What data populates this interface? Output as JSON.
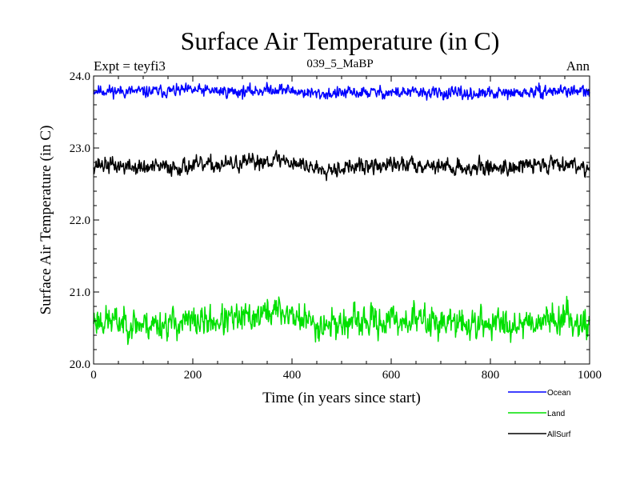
{
  "chart_data": {
    "type": "line",
    "title": "Surface Air Temperature (in C)",
    "subtitle": "039_5_MaBP",
    "left_annotation": "Expt = teyfi3",
    "right_annotation": "Ann",
    "xlabel": "Time (in years since start)",
    "ylabel": "Surface Air Temperature (in C)",
    "xlim": [
      0,
      1000
    ],
    "ylim": [
      20.0,
      24.0
    ],
    "xticks": [
      0,
      200,
      400,
      600,
      800,
      1000
    ],
    "xtick_labels": [
      "0",
      "200",
      "400",
      "600",
      "800",
      "1000"
    ],
    "yticks": [
      20.0,
      21.0,
      22.0,
      23.0,
      24.0
    ],
    "ytick_labels": [
      "20.0",
      "21.0",
      "22.0",
      "23.0",
      "24.0"
    ],
    "grid": false,
    "legend_position": "bottom-right",
    "n_points": 1000,
    "series": [
      {
        "name": "Ocean",
        "color": "#0000ff",
        "mean": 23.77,
        "noise": 0.055,
        "seed": 11,
        "anchors_x": [
          0,
          100,
          200,
          300,
          370,
          450,
          550,
          650,
          750,
          850,
          950,
          1000
        ],
        "anchors_y": [
          23.8,
          23.78,
          23.8,
          23.78,
          23.82,
          23.75,
          23.77,
          23.77,
          23.75,
          23.76,
          23.8,
          23.77
        ]
      },
      {
        "name": "Land",
        "color": "#00e000",
        "mean": 20.6,
        "noise": 0.14,
        "seed": 23,
        "anchors_x": [
          0,
          100,
          200,
          300,
          370,
          450,
          550,
          650,
          750,
          850,
          950,
          1000
        ],
        "anchors_y": [
          20.62,
          20.55,
          20.58,
          20.62,
          20.75,
          20.55,
          20.58,
          20.62,
          20.55,
          20.57,
          20.65,
          20.55
        ]
      },
      {
        "name": "AllSurf",
        "color": "#000000",
        "mean": 22.75,
        "noise": 0.075,
        "seed": 37,
        "anchors_x": [
          0,
          100,
          200,
          300,
          370,
          450,
          550,
          650,
          750,
          850,
          950,
          1000
        ],
        "anchors_y": [
          22.78,
          22.72,
          22.75,
          22.78,
          22.85,
          22.72,
          22.74,
          22.78,
          22.72,
          22.74,
          22.8,
          22.72
        ]
      }
    ]
  }
}
